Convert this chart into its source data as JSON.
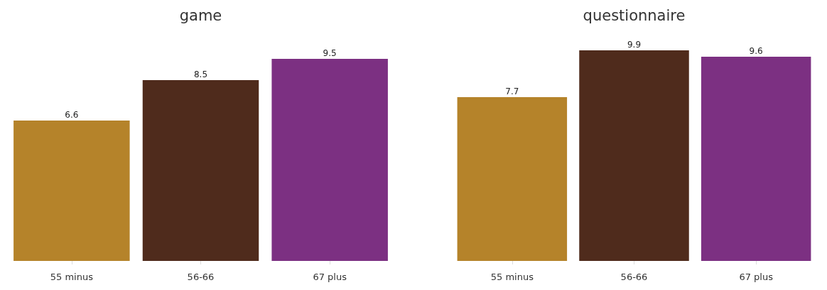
{
  "chart_data": [
    {
      "type": "bar",
      "title": "game",
      "categories": [
        "55 minus",
        "56-66",
        "67 plus"
      ],
      "values": [
        6.6,
        8.5,
        9.5
      ],
      "colors": [
        "#b5832a",
        "#4f2b1c",
        "#7c3082"
      ],
      "data_labels": true,
      "tick_labels": "x"
    },
    {
      "type": "bar",
      "title": "questionnaire",
      "categories": [
        "55 minus",
        "56-66",
        "67 plus"
      ],
      "values": [
        7.7,
        9.9,
        9.6
      ],
      "colors": [
        "#b5832a",
        "#4f2b1c",
        "#7c3082"
      ],
      "data_labels": true,
      "tick_labels": "x"
    }
  ]
}
